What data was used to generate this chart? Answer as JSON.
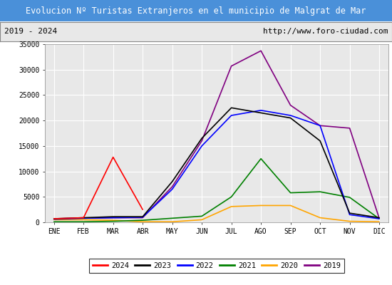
{
  "title": "Evolucion Nº Turistas Extranjeros en el municipio de Malgrat de Mar",
  "subtitle_left": "2019 - 2024",
  "subtitle_right": "http://www.foro-ciudad.com",
  "title_bg": "#4a90d9",
  "title_color": "white",
  "subtitle_bg": "#e8e8e8",
  "subtitle_color": "black",
  "plot_bg": "#e8e8e8",
  "months": [
    "ENE",
    "FEB",
    "MAR",
    "ABR",
    "MAY",
    "JUN",
    "JUL",
    "AGO",
    "SEP",
    "OCT",
    "NOV",
    "DIC"
  ],
  "ylim": [
    0,
    35000
  ],
  "yticks": [
    0,
    5000,
    10000,
    15000,
    20000,
    25000,
    30000,
    35000
  ],
  "series": {
    "2024": {
      "color": "red",
      "data": [
        700,
        900,
        12800,
        2500,
        null,
        null,
        null,
        null,
        null,
        null,
        null,
        null
      ]
    },
    "2023": {
      "color": "black",
      "data": [
        700,
        900,
        1100,
        1100,
        8000,
        16500,
        22500,
        21500,
        20500,
        16000,
        1800,
        900
      ]
    },
    "2022": {
      "color": "blue",
      "data": [
        600,
        800,
        900,
        1000,
        6500,
        15000,
        21000,
        22000,
        21000,
        19000,
        1500,
        700
      ]
    },
    "2021": {
      "color": "green",
      "data": [
        100,
        100,
        200,
        400,
        800,
        1200,
        5000,
        12500,
        5800,
        6000,
        4900,
        700
      ]
    },
    "2020": {
      "color": "orange",
      "data": [
        500,
        500,
        400,
        100,
        100,
        500,
        3100,
        3300,
        3300,
        900,
        200,
        100
      ]
    },
    "2019": {
      "color": "purple",
      "data": [
        700,
        800,
        900,
        900,
        7000,
        16000,
        30700,
        33700,
        23000,
        19000,
        18500,
        800
      ]
    }
  },
  "legend_order": [
    "2024",
    "2023",
    "2022",
    "2021",
    "2020",
    "2019"
  ]
}
